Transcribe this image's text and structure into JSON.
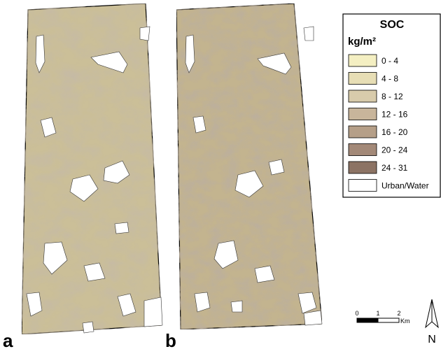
{
  "panels": [
    {
      "label": "a"
    },
    {
      "label": "b"
    }
  ],
  "legend": {
    "title": "SOC",
    "unit": "kg/m²",
    "items": [
      {
        "label": "0 - 4",
        "color": "#f4efc2"
      },
      {
        "label": "4 - 8",
        "color": "#e7deb5"
      },
      {
        "label": "8 - 12",
        "color": "#d8cbab"
      },
      {
        "label": "12 - 16",
        "color": "#c8b59b"
      },
      {
        "label": "16 - 20",
        "color": "#b59f88"
      },
      {
        "label": "20 - 24",
        "color": "#a38978"
      },
      {
        "label": "24 - 31",
        "color": "#8c7364"
      },
      {
        "label": "Urban/Water",
        "color": "#ffffff"
      }
    ]
  },
  "scale_bar": {
    "labels": [
      "0",
      "1",
      "2"
    ],
    "unit": "Km"
  },
  "north_arrow": {
    "label": "N"
  }
}
